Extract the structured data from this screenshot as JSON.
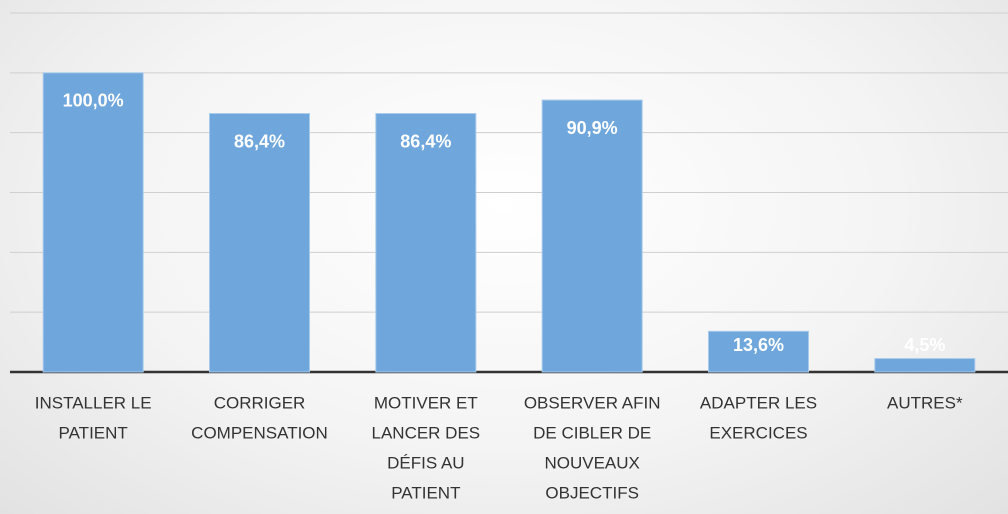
{
  "chart_data": {
    "type": "bar",
    "categories": [
      [
        "INSTALLER LE",
        "PATIENT"
      ],
      [
        "CORRIGER",
        "COMPENSATION"
      ],
      [
        "MOTIVER ET",
        "LANCER DES",
        "DÉFIS AU",
        "PATIENT"
      ],
      [
        "OBSERVER AFIN",
        "DE CIBLER DE",
        "NOUVEAUX",
        "OBJECTIFS"
      ],
      [
        "ADAPTER LES",
        "EXERCICES"
      ],
      [
        "AUTRES*"
      ]
    ],
    "values": [
      100,
      86.4,
      86.4,
      90.9,
      13.6,
      4.5
    ],
    "value_labels": [
      "100,0%",
      "86,4%",
      "86,4%",
      "90,9%",
      "13,6%",
      "4,5%"
    ],
    "color": "#6fa6dc",
    "ylim": [
      0,
      120
    ],
    "yticks": [
      0,
      20,
      40,
      60,
      80,
      100,
      120
    ],
    "grid": true
  }
}
